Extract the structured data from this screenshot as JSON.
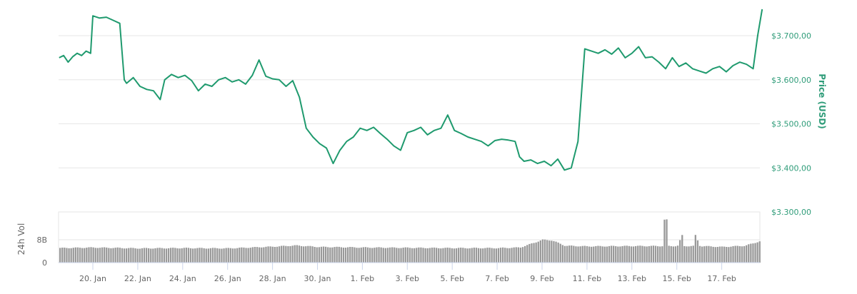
{
  "chart_data": {
    "type": "line",
    "title": "",
    "ylabel": "Price (USD)",
    "xlabel": "",
    "ylim": [
      3300,
      3760
    ],
    "grid": true,
    "price_color": "#1f9a6e",
    "y_ticks": [
      "$3.300,00",
      "$3.400,00",
      "$3.500,00",
      "$3.600,00",
      "$3.700,00"
    ],
    "y_tick_values": [
      3300,
      3400,
      3500,
      3600,
      3700
    ],
    "x_ticks": [
      "20. Jan",
      "22. Jan",
      "24. Jan",
      "26. Jan",
      "28. Jan",
      "30. Jan",
      "1. Feb",
      "3. Feb",
      "5. Feb",
      "7. Feb",
      "9. Feb",
      "11. Feb",
      "13. Feb",
      "15. Feb",
      "17. Feb"
    ],
    "series": [
      {
        "name": "Price (USD)",
        "x_days_from_jan20": [
          -1.5,
          -1.3,
          -1.1,
          -0.9,
          -0.7,
          -0.5,
          -0.3,
          -0.1,
          0.0,
          0.3,
          0.6,
          0.9,
          1.2,
          1.4,
          1.5,
          1.8,
          2.1,
          2.4,
          2.7,
          3.0,
          3.2,
          3.5,
          3.8,
          4.1,
          4.4,
          4.7,
          5.0,
          5.3,
          5.6,
          5.9,
          6.2,
          6.5,
          6.8,
          7.1,
          7.4,
          7.7,
          8.0,
          8.3,
          8.6,
          8.9,
          9.2,
          9.5,
          9.8,
          10.1,
          10.4,
          10.7,
          11.0,
          11.3,
          11.6,
          11.9,
          12.2,
          12.5,
          12.8,
          13.1,
          13.4,
          13.7,
          14.0,
          14.3,
          14.6,
          14.9,
          15.2,
          15.5,
          15.8,
          16.1,
          16.4,
          16.7,
          17.0,
          17.3,
          17.6,
          17.9,
          18.2,
          18.5,
          18.8,
          19.0,
          19.2,
          19.5,
          19.8,
          20.1,
          20.4,
          20.7,
          21.0,
          21.3,
          21.6,
          21.9,
          22.2,
          22.5,
          22.8,
          23.1,
          23.4,
          23.7,
          24.0,
          24.3,
          24.6,
          24.9,
          25.2,
          25.5,
          25.8,
          26.1,
          26.4,
          26.7,
          27.0,
          27.3,
          27.6,
          27.9,
          28.2,
          28.5,
          28.8,
          29.1,
          29.4,
          29.6,
          29.8
        ],
        "values": [
          3650,
          3655,
          3640,
          3652,
          3660,
          3655,
          3665,
          3660,
          3745,
          3740,
          3742,
          3735,
          3728,
          3600,
          3592,
          3605,
          3585,
          3578,
          3575,
          3555,
          3600,
          3612,
          3605,
          3610,
          3598,
          3575,
          3590,
          3585,
          3600,
          3605,
          3595,
          3600,
          3590,
          3610,
          3645,
          3608,
          3602,
          3600,
          3585,
          3598,
          3560,
          3490,
          3470,
          3455,
          3445,
          3410,
          3440,
          3460,
          3470,
          3490,
          3485,
          3492,
          3478,
          3465,
          3450,
          3440,
          3480,
          3485,
          3492,
          3475,
          3485,
          3490,
          3520,
          3485,
          3478,
          3470,
          3465,
          3460,
          3450,
          3462,
          3465,
          3463,
          3460,
          3425,
          3415,
          3418,
          3410,
          3415,
          3405,
          3420,
          3395,
          3400,
          3460,
          3670,
          3665,
          3660,
          3668,
          3658,
          3672,
          3650,
          3660,
          3675,
          3650,
          3652,
          3640,
          3625,
          3650,
          3630,
          3638,
          3625,
          3620,
          3615,
          3625,
          3630,
          3618,
          3632,
          3640,
          3635,
          3625,
          3700,
          3760
        ]
      }
    ],
    "volume": {
      "ylabel": "24h Vol",
      "y_ticks": [
        "0",
        "8B"
      ],
      "color": "#999999",
      "x_days_from_jan20": [
        -1.5,
        0,
        2,
        4,
        6,
        8,
        9,
        10,
        12,
        14,
        16,
        18,
        19,
        20,
        20.4,
        21,
        22,
        24,
        26,
        26.5,
        27,
        28,
        29,
        29.8
      ],
      "values_billions": [
        5.1,
        5.3,
        5.0,
        5.1,
        5.0,
        5.6,
        6.0,
        5.5,
        5.3,
        5.2,
        5.1,
        5.1,
        5.3,
        8.0,
        7.8,
        5.9,
        5.7,
        5.8,
        5.8,
        15.0,
        5.8,
        5.5,
        5.9,
        7.8
      ]
    }
  },
  "labels": {
    "y_axis_title": "Price (USD)",
    "vol_axis_title": "24h Vol",
    "vol_tick_0": "0",
    "vol_tick_8b": "8B"
  }
}
